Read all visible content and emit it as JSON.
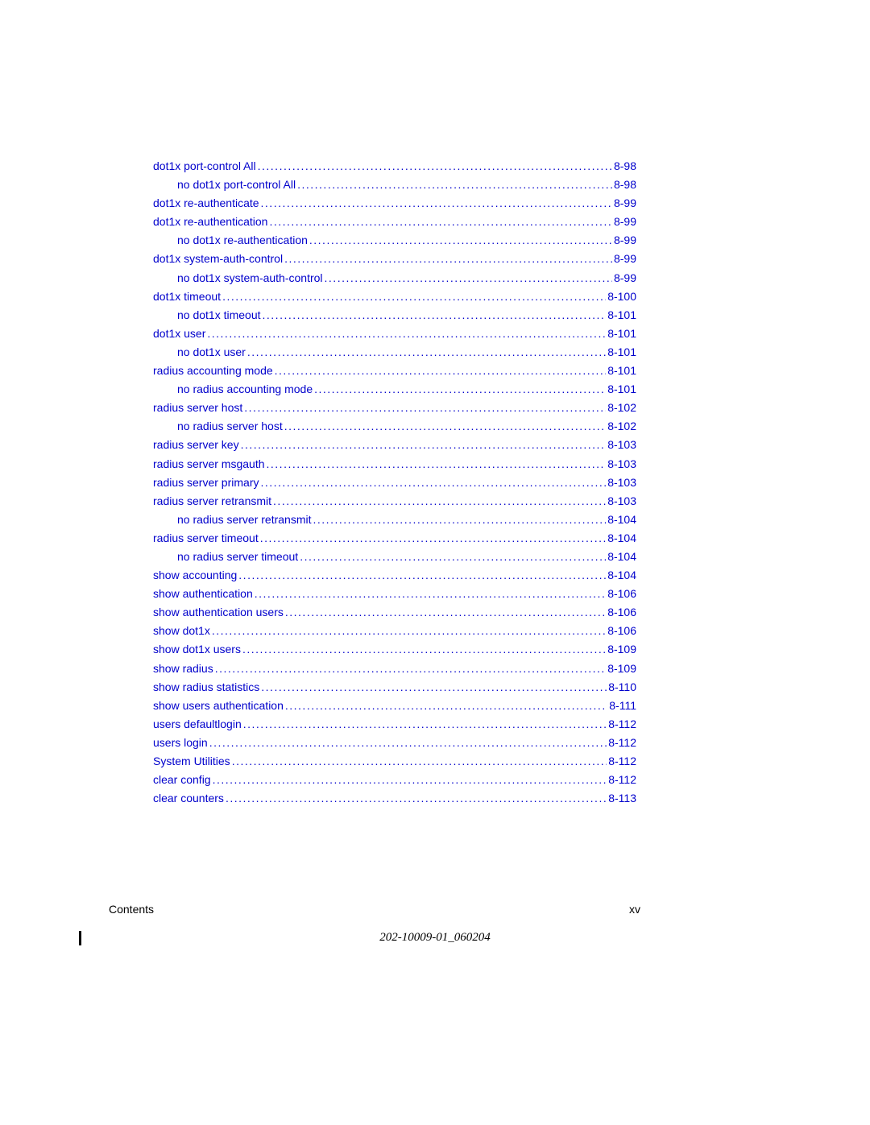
{
  "link_color": "#0000cc",
  "entries": [
    {
      "label": "dot1x port-control All",
      "page": "8-98",
      "indent": 1
    },
    {
      "label": "no dot1x port-control All",
      "page": "8-98",
      "indent": 2
    },
    {
      "label": "dot1x re-authenticate",
      "page": "8-99",
      "indent": 1
    },
    {
      "label": "dot1x re-authentication",
      "page": "8-99",
      "indent": 1
    },
    {
      "label": "no dot1x re-authentication",
      "page": "8-99",
      "indent": 2
    },
    {
      "label": "dot1x system-auth-control",
      "page": "8-99",
      "indent": 1
    },
    {
      "label": "no dot1x system-auth-control",
      "page": "8-99",
      "indent": 2
    },
    {
      "label": "dot1x timeout",
      "page": "8-100",
      "indent": 1
    },
    {
      "label": "no dot1x timeout",
      "page": "8-101",
      "indent": 2
    },
    {
      "label": "dot1x user",
      "page": "8-101",
      "indent": 1
    },
    {
      "label": "no dot1x user",
      "page": "8-101",
      "indent": 2
    },
    {
      "label": "radius accounting mode",
      "page": "8-101",
      "indent": 1
    },
    {
      "label": "no radius accounting mode",
      "page": "8-101",
      "indent": 2
    },
    {
      "label": "radius server host",
      "page": "8-102",
      "indent": 1
    },
    {
      "label": "no radius server host",
      "page": "8-102",
      "indent": 2
    },
    {
      "label": "radius server key",
      "page": "8-103",
      "indent": 1
    },
    {
      "label": "radius server msgauth",
      "page": "8-103",
      "indent": 1
    },
    {
      "label": "radius server primary",
      "page": "8-103",
      "indent": 1
    },
    {
      "label": "radius server retransmit",
      "page": "8-103",
      "indent": 1
    },
    {
      "label": "no radius server retransmit",
      "page": "8-104",
      "indent": 2
    },
    {
      "label": "radius server timeout",
      "page": "8-104",
      "indent": 1
    },
    {
      "label": "no radius server timeout",
      "page": "8-104",
      "indent": 2
    },
    {
      "label": "show accounting",
      "page": "8-104",
      "indent": 1
    },
    {
      "label": "show authentication",
      "page": "8-106",
      "indent": 1
    },
    {
      "label": "show authentication users",
      "page": "8-106",
      "indent": 1
    },
    {
      "label": "show dot1x",
      "page": "8-106",
      "indent": 1
    },
    {
      "label": "show dot1x users",
      "page": "8-109",
      "indent": 1
    },
    {
      "label": "show radius",
      "page": "8-109",
      "indent": 1
    },
    {
      "label": "show radius statistics",
      "page": "8-110",
      "indent": 1
    },
    {
      "label": "show users authentication",
      "page": "8-111",
      "indent": 1
    },
    {
      "label": "users defaultlogin",
      "page": "8-112",
      "indent": 1
    },
    {
      "label": "users login",
      "page": "8-112",
      "indent": 1
    },
    {
      "label": "System Utilities",
      "page": "8-112",
      "indent": 0
    },
    {
      "label": "clear config",
      "page": "8-112",
      "indent": 1
    },
    {
      "label": "clear counters",
      "page": "8-113",
      "indent": 1
    }
  ],
  "footer": {
    "left": "Contents",
    "right": "xv",
    "doc_id": "202-10009-01_060204"
  }
}
